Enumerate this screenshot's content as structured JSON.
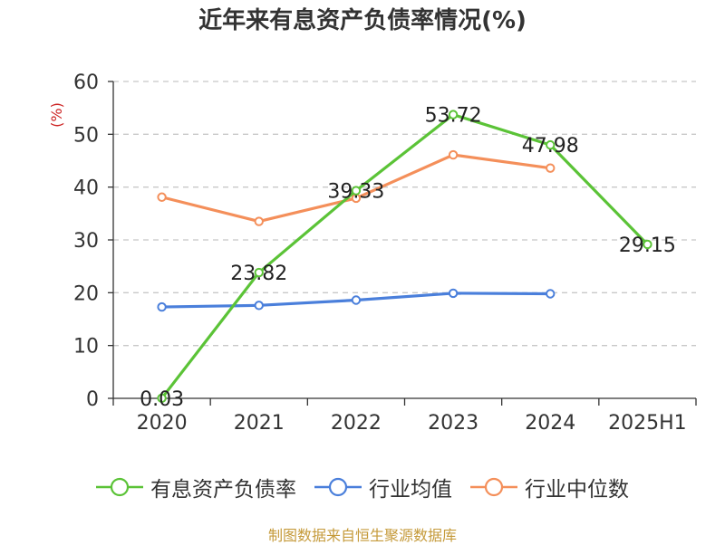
{
  "chart_data": {
    "type": "line",
    "title": "近年来有息资产负债率情况(%)",
    "ylabel": "(%)",
    "xlabel": "",
    "categories": [
      "2020",
      "2021",
      "2022",
      "2023",
      "2024",
      "2025H1"
    ],
    "ylim": [
      0,
      60
    ],
    "yticks": [
      0,
      10,
      20,
      30,
      40,
      50,
      60
    ],
    "grid": true,
    "legend_position": "bottom",
    "series": [
      {
        "name": "有息资产负债率",
        "color": "#5bc337",
        "values": [
          0.03,
          23.82,
          39.33,
          53.72,
          47.98,
          29.15
        ],
        "labels": [
          "0.03",
          "23.82",
          "39.33",
          "53.72",
          "47.98",
          "29.15"
        ]
      },
      {
        "name": "行业均值",
        "color": "#4a7fdb",
        "values": [
          17.3,
          17.6,
          18.6,
          19.9,
          19.8,
          null
        ]
      },
      {
        "name": "行业中位数",
        "color": "#f48f5a",
        "values": [
          38.1,
          33.5,
          37.9,
          46.1,
          43.6,
          null
        ]
      }
    ]
  },
  "source_note": "制图数据来自恒生聚源数据库"
}
